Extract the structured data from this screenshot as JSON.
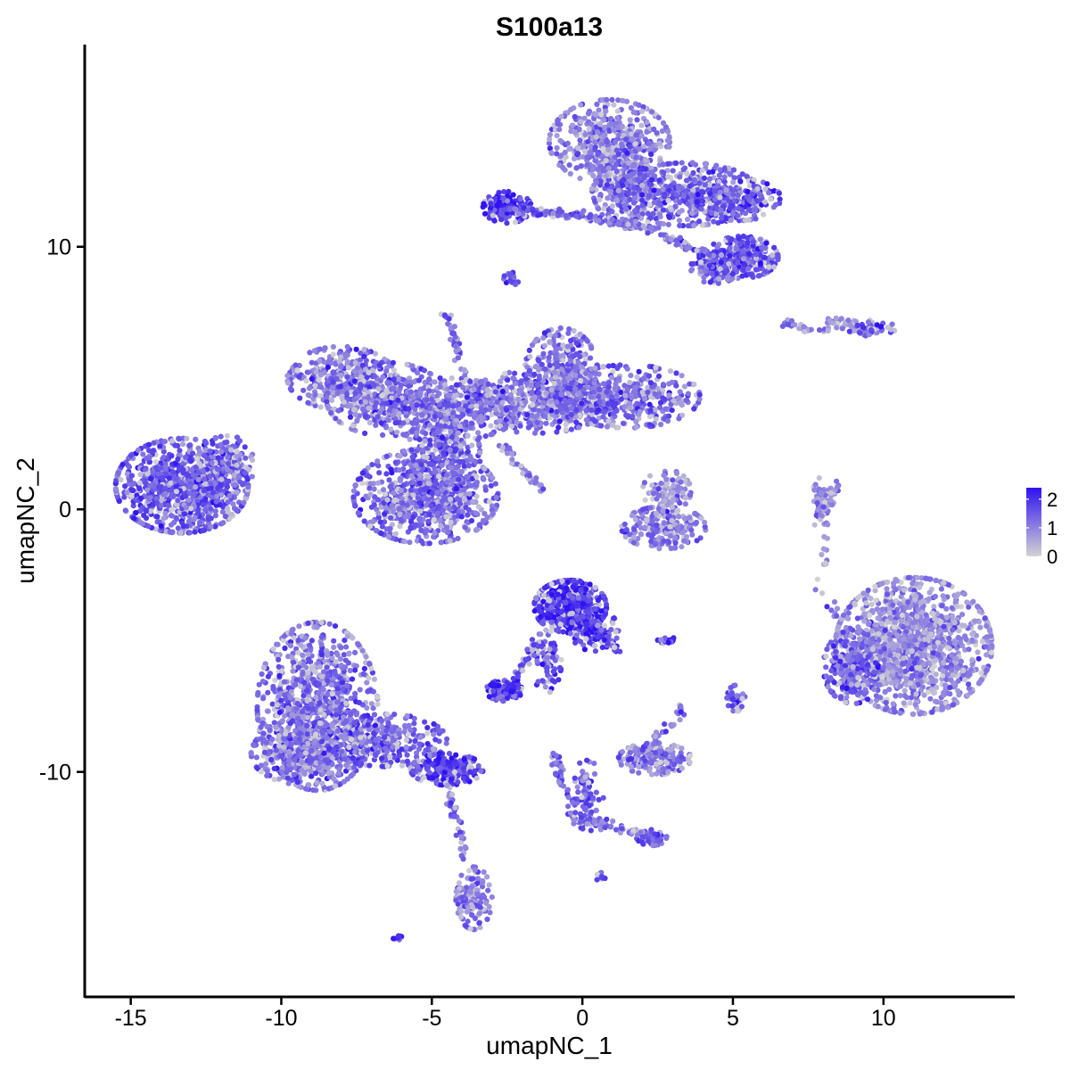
{
  "chart_data": {
    "type": "scatter",
    "title": "S100a13",
    "xlabel": "umapNC_1",
    "ylabel": "umapNC_2",
    "xlim": [
      -16.5,
      14.3
    ],
    "ylim": [
      -18.5,
      17.7
    ],
    "x_ticks": [
      {
        "value": -15,
        "label": "-15"
      },
      {
        "value": -10,
        "label": "-10"
      },
      {
        "value": -5,
        "label": "-5"
      },
      {
        "value": 0,
        "label": "0"
      },
      {
        "value": 5,
        "label": "5"
      },
      {
        "value": 10,
        "label": "10"
      }
    ],
    "y_ticks": [
      {
        "value": -10,
        "label": "-10"
      },
      {
        "value": 0,
        "label": "0"
      },
      {
        "value": 10,
        "label": "10"
      }
    ],
    "grid": false,
    "color_scale": {
      "low_color": "#d3d3d3",
      "high_color": "#2f12f2",
      "min": 0,
      "max": 2.4,
      "legend_position": "right",
      "ticks": [
        {
          "value": 2,
          "label": "2"
        },
        {
          "value": 1,
          "label": "1"
        },
        {
          "value": 0,
          "label": "0"
        }
      ]
    },
    "clusters": [
      {
        "x": -13.3,
        "y": 0.9,
        "sx": 1.1,
        "sy": 0.9,
        "n": 900,
        "expr": 1.5
      },
      {
        "x": -11.8,
        "y": 1.8,
        "sx": 0.5,
        "sy": 0.5,
        "n": 120,
        "expr": 1.4
      },
      {
        "x": -8.0,
        "y": 5.0,
        "sx": 0.9,
        "sy": 0.6,
        "n": 350,
        "expr": 1.2
      },
      {
        "x": -6.5,
        "y": 4.2,
        "sx": 1.0,
        "sy": 0.7,
        "n": 300,
        "expr": 1.2
      },
      {
        "x": -4.5,
        "y": 3.8,
        "sx": 1.2,
        "sy": 0.6,
        "n": 400,
        "expr": 1.2
      },
      {
        "x": -5.2,
        "y": 0.5,
        "sx": 1.2,
        "sy": 0.9,
        "n": 700,
        "expr": 1.3
      },
      {
        "x": -4.6,
        "y": 2.0,
        "sx": 0.6,
        "sy": 1.0,
        "n": 300,
        "expr": 1.3
      },
      {
        "x": -1.5,
        "y": 4.1,
        "sx": 1.2,
        "sy": 0.6,
        "n": 450,
        "expr": 1.2
      },
      {
        "x": -0.7,
        "y": 5.3,
        "sx": 0.6,
        "sy": 0.8,
        "n": 350,
        "expr": 1.3
      },
      {
        "x": 1.5,
        "y": 4.3,
        "sx": 1.2,
        "sy": 0.6,
        "n": 400,
        "expr": 1.3
      },
      {
        "x": 0.9,
        "y": 14.0,
        "sx": 1.0,
        "sy": 0.8,
        "n": 450,
        "expr": 1.1
      },
      {
        "x": 1.5,
        "y": 12.5,
        "sx": 0.6,
        "sy": 0.9,
        "n": 300,
        "expr": 1.2
      },
      {
        "x": 3.5,
        "y": 12.0,
        "sx": 1.2,
        "sy": 0.6,
        "n": 450,
        "expr": 1.4
      },
      {
        "x": 5.2,
        "y": 11.8,
        "sx": 0.7,
        "sy": 0.4,
        "n": 200,
        "expr": 1.6
      },
      {
        "x": 5.3,
        "y": 9.6,
        "sx": 0.6,
        "sy": 0.4,
        "n": 250,
        "expr": 1.6
      },
      {
        "x": 4.4,
        "y": 9.2,
        "sx": 0.4,
        "sy": 0.3,
        "n": 120,
        "expr": 1.5
      },
      {
        "x": -2.5,
        "y": 11.5,
        "sx": 0.4,
        "sy": 0.3,
        "n": 150,
        "expr": 1.9
      },
      {
        "x": -2.4,
        "y": 8.8,
        "sx": 0.15,
        "sy": 0.15,
        "n": 20,
        "expr": 1.4
      },
      {
        "x": 11.0,
        "y": -5.2,
        "sx": 1.3,
        "sy": 1.3,
        "n": 1300,
        "expr": 0.9
      },
      {
        "x": 9.0,
        "y": -6.0,
        "sx": 0.5,
        "sy": 0.7,
        "n": 250,
        "expr": 1.4
      },
      {
        "x": 8.7,
        "y": 7.0,
        "sx": 0.5,
        "sy": 0.15,
        "n": 40,
        "expr": 1.0
      },
      {
        "x": 9.6,
        "y": 6.9,
        "sx": 0.4,
        "sy": 0.15,
        "n": 50,
        "expr": 1.4
      },
      {
        "x": 2.7,
        "y": -0.7,
        "sx": 0.7,
        "sy": 0.4,
        "n": 200,
        "expr": 1.1
      },
      {
        "x": 2.8,
        "y": 0.7,
        "sx": 0.4,
        "sy": 0.4,
        "n": 90,
        "expr": 0.9
      },
      {
        "x": 7.9,
        "y": 0.2,
        "sx": 0.15,
        "sy": 0.5,
        "n": 50,
        "expr": 0.9
      },
      {
        "x": -0.4,
        "y": -3.7,
        "sx": 0.6,
        "sy": 0.5,
        "n": 450,
        "expr": 2.0
      },
      {
        "x": 0.4,
        "y": -4.6,
        "sx": 0.4,
        "sy": 0.4,
        "n": 120,
        "expr": 1.8
      },
      {
        "x": -1.2,
        "y": -5.8,
        "sx": 0.25,
        "sy": 0.6,
        "n": 70,
        "expr": 1.6
      },
      {
        "x": -2.6,
        "y": -6.9,
        "sx": 0.3,
        "sy": 0.2,
        "n": 120,
        "expr": 1.9
      },
      {
        "x": 2.8,
        "y": -5.0,
        "sx": 0.15,
        "sy": 0.08,
        "n": 20,
        "expr": 1.9
      },
      {
        "x": 5.1,
        "y": -7.2,
        "sx": 0.15,
        "sy": 0.25,
        "n": 40,
        "expr": 1.5
      },
      {
        "x": 2.4,
        "y": -9.5,
        "sx": 0.6,
        "sy": 0.3,
        "n": 180,
        "expr": 1.2
      },
      {
        "x": 0.1,
        "y": -10.9,
        "sx": 0.3,
        "sy": 0.7,
        "n": 80,
        "expr": 1.3
      },
      {
        "x": 2.3,
        "y": -12.5,
        "sx": 0.25,
        "sy": 0.15,
        "n": 50,
        "expr": 1.5
      },
      {
        "x": 0.6,
        "y": -14.0,
        "sx": 0.08,
        "sy": 0.08,
        "n": 10,
        "expr": 1.8
      },
      {
        "x": -8.8,
        "y": -7.5,
        "sx": 1.0,
        "sy": 1.6,
        "n": 900,
        "expr": 1.2
      },
      {
        "x": -9.2,
        "y": -9.3,
        "sx": 0.9,
        "sy": 0.6,
        "n": 400,
        "expr": 1.2
      },
      {
        "x": -6.5,
        "y": -8.8,
        "sx": 1.0,
        "sy": 0.5,
        "n": 300,
        "expr": 1.4
      },
      {
        "x": -4.5,
        "y": -9.9,
        "sx": 0.6,
        "sy": 0.3,
        "n": 200,
        "expr": 1.9
      },
      {
        "x": -3.6,
        "y": -14.8,
        "sx": 0.3,
        "sy": 0.6,
        "n": 120,
        "expr": 1.1
      },
      {
        "x": -6.1,
        "y": -16.3,
        "sx": 0.1,
        "sy": 0.05,
        "n": 10,
        "expr": 1.9
      }
    ],
    "segments": [
      {
        "x1": -4.5,
        "y1": 7.5,
        "x2": -4.1,
        "y2": 5.8,
        "n": 35,
        "expr": 1.3
      },
      {
        "x1": -4.1,
        "y1": 5.8,
        "x2": -3.3,
        "y2": 3.5,
        "n": 40,
        "expr": 1.2
      },
      {
        "x1": -2.8,
        "y1": 2.6,
        "x2": -1.3,
        "y2": 0.7,
        "n": 40,
        "expr": 1.2
      },
      {
        "x1": -2.6,
        "y1": 11.4,
        "x2": 0.0,
        "y2": 11.2,
        "n": 90,
        "expr": 1.5
      },
      {
        "x1": 0.0,
        "y1": 11.2,
        "x2": 1.8,
        "y2": 10.8,
        "n": 60,
        "expr": 1.3
      },
      {
        "x1": 1.6,
        "y1": 11.0,
        "x2": 4.3,
        "y2": 9.6,
        "n": 80,
        "expr": 1.3
      },
      {
        "x1": 6.7,
        "y1": 7.1,
        "x2": 7.6,
        "y2": 6.8,
        "n": 25,
        "expr": 1.0
      },
      {
        "x1": 8.6,
        "y1": 1.2,
        "x2": 7.8,
        "y2": -0.5,
        "n": 30,
        "expr": 0.9
      },
      {
        "x1": 8.1,
        "y1": -0.5,
        "x2": 8.0,
        "y2": -2.5,
        "n": 10,
        "expr": 0.7
      },
      {
        "x1": -1.5,
        "y1": -5.0,
        "x2": -2.3,
        "y2": -6.6,
        "n": 40,
        "expr": 1.6
      },
      {
        "x1": 0.5,
        "y1": -4.5,
        "x2": 1.2,
        "y2": -5.5,
        "n": 30,
        "expr": 1.7
      },
      {
        "x1": -0.9,
        "y1": -9.3,
        "x2": -0.3,
        "y2": -11.8,
        "n": 40,
        "expr": 1.3
      },
      {
        "x1": 0.0,
        "y1": -11.8,
        "x2": 2.2,
        "y2": -12.4,
        "n": 50,
        "expr": 1.2
      },
      {
        "x1": -4.5,
        "y1": -10.4,
        "x2": -3.9,
        "y2": -13.2,
        "n": 40,
        "expr": 1.2
      },
      {
        "x1": 1.9,
        "y1": -9.2,
        "x2": 3.0,
        "y2": -8.2,
        "n": 25,
        "expr": 1.2
      },
      {
        "x1": 3.3,
        "y1": -7.4,
        "x2": 3.2,
        "y2": -8.0,
        "n": 10,
        "expr": 1.3
      },
      {
        "x1": 7.4,
        "y1": -2.2,
        "x2": 8.5,
        "y2": -4.2,
        "n": 10,
        "expr": 0.8
      }
    ]
  }
}
